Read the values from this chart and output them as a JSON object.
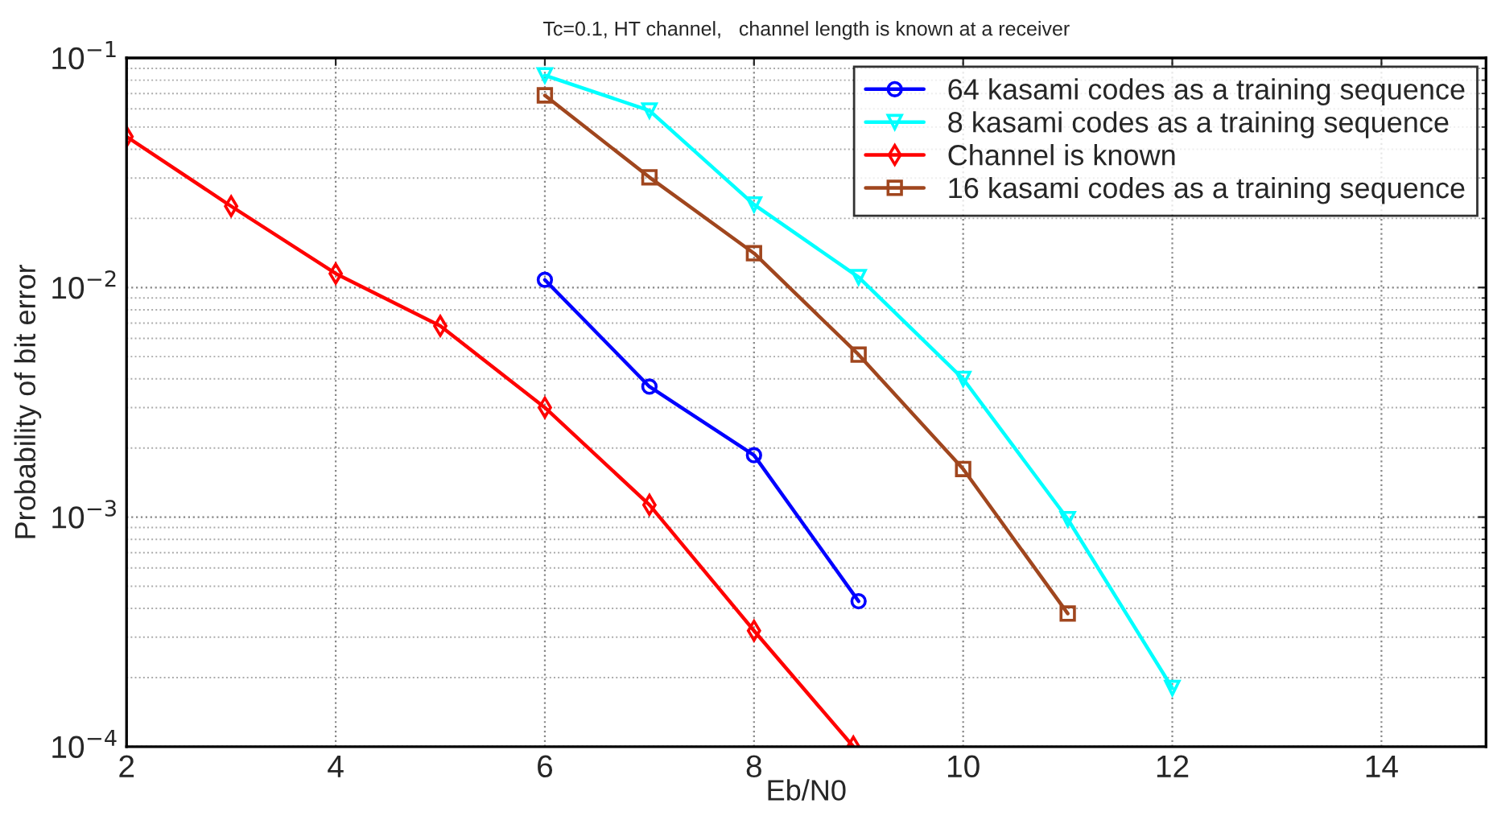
{
  "chart_data": {
    "type": "line",
    "title": "Tc=0.1, HT channel,   channel length is known at a receiver",
    "xlabel": "Eb/N0",
    "ylabel": "Probability of bit error",
    "log": "y",
    "xlim": [
      2,
      15
    ],
    "xticks": [
      2,
      4,
      6,
      8,
      10,
      12,
      14
    ],
    "ylim": [
      0.0001,
      0.1
    ],
    "yticks": [
      {
        "value": 0.0001,
        "label": "10$^{−4}$"
      },
      {
        "value": 0.001,
        "label": "10$^{−3}$"
      },
      {
        "value": 0.01,
        "label": "10$^{−2}$"
      },
      {
        "value": 0.1,
        "label": "10$^{−1}$"
      }
    ],
    "grid": true,
    "legend": "top right",
    "series": [
      {
        "name": "64 kasami codes as a training sequence",
        "color": "#0000ff",
        "marker": "circle",
        "x": [
          6,
          7,
          8,
          9
        ],
        "values": [
          0.0108,
          0.0037,
          0.00186,
          0.00043
        ]
      },
      {
        "name": "8 kasami codes as a training sequence",
        "color": "#00ffff",
        "marker": "triangle",
        "x": [
          6,
          7,
          8,
          9,
          10,
          11,
          12
        ],
        "values": [
          0.084,
          0.059,
          0.023,
          0.0111,
          0.004,
          0.00098,
          0.00018
        ]
      },
      {
        "name": "Channel is known",
        "color": "#ff0000",
        "marker": "diamond",
        "x": [
          2,
          3,
          4,
          5,
          6,
          7,
          8,
          8.95
        ],
        "values": [
          0.0454,
          0.0226,
          0.0115,
          0.0068,
          0.003,
          0.00113,
          0.00032,
          0.0001
        ]
      },
      {
        "name": "16 kasami codes as a training sequence",
        "color": "#a0461e",
        "marker": "square",
        "x": [
          6,
          7,
          8,
          9,
          10,
          11
        ],
        "values": [
          0.0687,
          0.0302,
          0.0141,
          0.0051,
          0.00162,
          0.00038
        ]
      }
    ]
  }
}
